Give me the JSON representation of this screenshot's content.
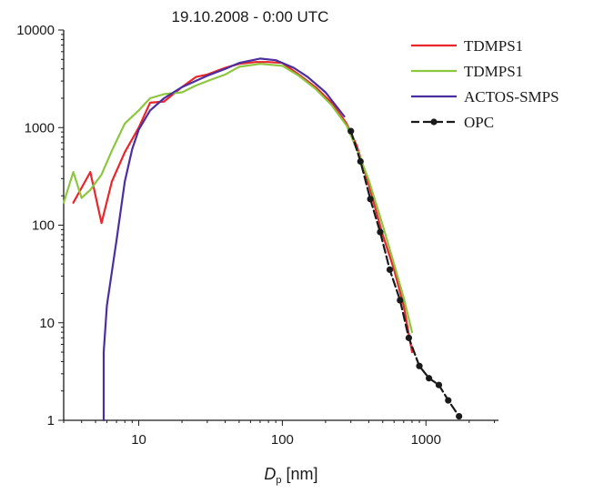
{
  "chart_data": {
    "type": "line",
    "title": "19.10.2008 - 0:00 UTC",
    "xlabel_main": "D",
    "xlabel_sub": "p",
    "xlabel_unit": " [nm]",
    "ylabel": "",
    "x_scale": "log",
    "y_scale": "log",
    "xlim": [
      3,
      3200
    ],
    "ylim": [
      1,
      10000
    ],
    "x_ticks": [
      {
        "value": 10,
        "label": "10"
      },
      {
        "value": 100,
        "label": "100"
      },
      {
        "value": 1000,
        "label": "1000"
      }
    ],
    "y_ticks": [
      {
        "value": 1,
        "label": "1"
      },
      {
        "value": 10,
        "label": "10"
      },
      {
        "value": 100,
        "label": "100"
      },
      {
        "value": 1000,
        "label": "1000"
      },
      {
        "value": 10000,
        "label": "10000"
      }
    ],
    "grid": false,
    "legend_position": "top-right",
    "series": [
      {
        "name": "TDMPS1",
        "color": "#e8262b",
        "marker": "none",
        "points": [
          [
            3.5,
            170
          ],
          [
            4.6,
            350
          ],
          [
            5.5,
            105
          ],
          [
            6.5,
            280
          ],
          [
            8,
            560
          ],
          [
            10,
            1000
          ],
          [
            12,
            1800
          ],
          [
            15,
            1850
          ],
          [
            20,
            2600
          ],
          [
            25,
            3300
          ],
          [
            30,
            3500
          ],
          [
            40,
            4100
          ],
          [
            50,
            4500
          ],
          [
            65,
            4700
          ],
          [
            80,
            4700
          ],
          [
            100,
            4600
          ],
          [
            130,
            3500
          ],
          [
            170,
            2600
          ],
          [
            220,
            1800
          ],
          [
            280,
            1100
          ],
          [
            330,
            650
          ],
          [
            400,
            260
          ],
          [
            500,
            80
          ],
          [
            600,
            35
          ],
          [
            700,
            15
          ],
          [
            800,
            5
          ]
        ]
      },
      {
        "name": "TDMPS1",
        "color": "#8dc63f",
        "marker": "none",
        "points": [
          [
            3,
            170
          ],
          [
            3.5,
            350
          ],
          [
            4,
            190
          ],
          [
            4.6,
            230
          ],
          [
            5.5,
            330
          ],
          [
            6.5,
            580
          ],
          [
            8,
            1100
          ],
          [
            10,
            1500
          ],
          [
            12,
            2000
          ],
          [
            15,
            2200
          ],
          [
            20,
            2300
          ],
          [
            25,
            2700
          ],
          [
            30,
            3000
          ],
          [
            40,
            3500
          ],
          [
            50,
            4200
          ],
          [
            70,
            4500
          ],
          [
            100,
            4300
          ],
          [
            130,
            3400
          ],
          [
            170,
            2500
          ],
          [
            220,
            1700
          ],
          [
            280,
            1050
          ],
          [
            330,
            600
          ],
          [
            400,
            290
          ],
          [
            500,
            100
          ],
          [
            600,
            40
          ],
          [
            700,
            18
          ],
          [
            800,
            8
          ]
        ]
      },
      {
        "name": "ACTOS-SMPS",
        "color": "#4b2fa0",
        "marker": "none",
        "points": [
          [
            5.7,
            1
          ],
          [
            5.7,
            5
          ],
          [
            6,
            15
          ],
          [
            7,
            70
          ],
          [
            8,
            280
          ],
          [
            9,
            600
          ],
          [
            10,
            950
          ],
          [
            12,
            1500
          ],
          [
            15,
            2000
          ],
          [
            20,
            2600
          ],
          [
            30,
            3400
          ],
          [
            40,
            4000
          ],
          [
            50,
            4600
          ],
          [
            70,
            5100
          ],
          [
            90,
            4900
          ],
          [
            120,
            4100
          ],
          [
            150,
            3300
          ],
          [
            200,
            2300
          ],
          [
            270,
            1300
          ]
        ]
      },
      {
        "name": "OPC",
        "color": "#1a1a1a",
        "marker": "circle",
        "points": [
          [
            300,
            920
          ],
          [
            350,
            450
          ],
          [
            410,
            185
          ],
          [
            480,
            85
          ],
          [
            560,
            35
          ],
          [
            660,
            17
          ],
          [
            760,
            7
          ],
          [
            900,
            3.6
          ],
          [
            1050,
            2.7
          ],
          [
            1230,
            2.3
          ],
          [
            1430,
            1.6
          ],
          [
            1700,
            1.1
          ]
        ]
      }
    ]
  }
}
